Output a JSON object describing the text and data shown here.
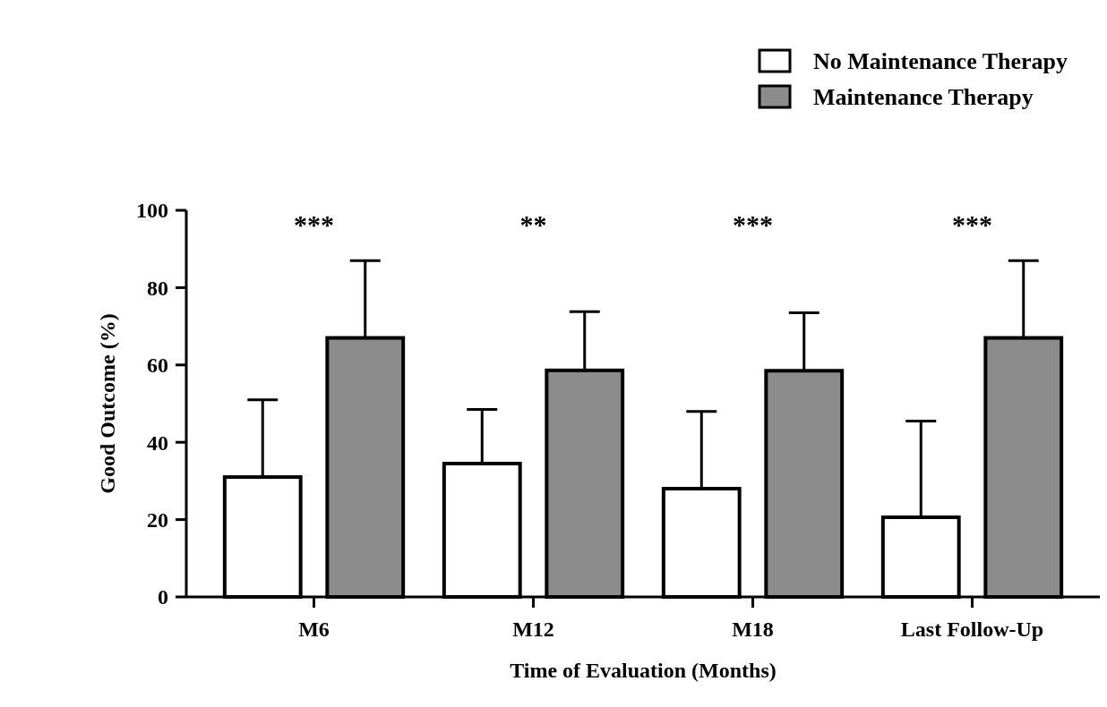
{
  "chart_data": {
    "type": "bar",
    "xlabel": "Time of Evaluation  (Months)",
    "ylabel": "Good Outcome (%)",
    "categories": [
      "M6",
      "M12",
      "M18",
      "Last Follow-Up"
    ],
    "series": [
      {
        "name": "No Maintenance Therapy",
        "color": "#ffffff",
        "values": [
          31,
          34.5,
          28,
          20.6
        ],
        "errors": [
          [
            31,
            51
          ],
          [
            34.5,
            48.5
          ],
          [
            28,
            48
          ],
          [
            20.6,
            45.5
          ]
        ]
      },
      {
        "name": "Maintenance Therapy",
        "color": "#8c8c8c",
        "values": [
          67,
          58.6,
          58.5,
          67
        ],
        "errors": [
          [
            67,
            87
          ],
          [
            58.6,
            73.8
          ],
          [
            58.5,
            73.5
          ],
          [
            67,
            87
          ]
        ]
      }
    ],
    "ylim": [
      0,
      100
    ],
    "yticks": [
      0,
      20,
      40,
      60,
      80,
      100
    ],
    "grid": false,
    "legend": "top right",
    "annotations": [
      "***",
      "**",
      "***",
      "***"
    ]
  }
}
